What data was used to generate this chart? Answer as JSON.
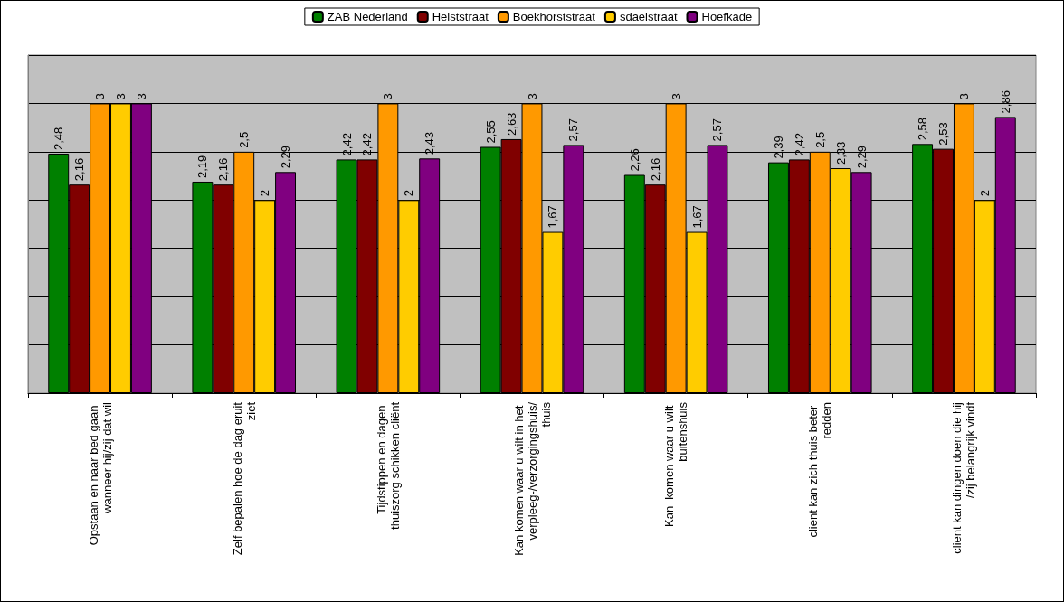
{
  "chart_data": {
    "type": "bar",
    "categories": [
      "Opstaan en naar bed gaan wanneer hij/zij dat wil",
      "Zelf bepalen hoe de dag eruit ziet",
      "Tijdstippen en dagen thuiszorg schikken cliënt",
      "Kan komen waar u wilt in het verpleeg-/verzorgingshuis/thuis",
      "Kan  komen waar u wilt buitenshuis",
      "client kan zich thuis beter redden",
      "client kan dingen doen die hij/zij belangrijk vindt"
    ],
    "series": [
      {
        "name": "ZAB Nederland",
        "color": "#008000",
        "values": [
          2.48,
          2.19,
          2.42,
          2.55,
          2.26,
          2.39,
          2.58
        ],
        "value_labels": [
          "2,48",
          "2,19",
          "2,42",
          "2,55",
          "2,26",
          "2,39",
          "2,58"
        ]
      },
      {
        "name": "Helststraat",
        "color": "#800000",
        "values": [
          2.16,
          2.16,
          2.42,
          2.63,
          2.16,
          2.42,
          2.53
        ],
        "value_labels": [
          "2,16",
          "2,16",
          "2,42",
          "2,63",
          "2,16",
          "2,42",
          "2,53"
        ]
      },
      {
        "name": "Boekhorststraat",
        "color": "#ff9900",
        "values": [
          3,
          2.5,
          3,
          3,
          3,
          2.5,
          3
        ],
        "value_labels": [
          "3",
          "2,5",
          "3",
          "3",
          "3",
          "2,5",
          "3"
        ]
      },
      {
        "name": "sdaelstraat",
        "color": "#ffcc00",
        "values": [
          3,
          2,
          2,
          1.67,
          1.67,
          2.33,
          2
        ],
        "value_labels": [
          "3",
          "2",
          "2",
          "1,67",
          "1,67",
          "2,33",
          "2"
        ]
      },
      {
        "name": "Hoefkade",
        "color": "#800080",
        "values": [
          3,
          2.29,
          2.43,
          2.57,
          2.57,
          2.29,
          2.86
        ],
        "value_labels": [
          "3",
          "2,29",
          "2,43",
          "2,57",
          "2,57",
          "2,29",
          "2,86"
        ]
      }
    ],
    "ylim": [
      0,
      3.5
    ],
    "yticks": [
      {
        "value": 0,
        "label": null
      },
      {
        "value": 0.5,
        "label": null
      },
      {
        "value": 1,
        "label": null
      },
      {
        "value": 1.5,
        "label": null
      },
      {
        "value": 2,
        "label": null
      },
      {
        "value": 2.5,
        "label": null
      },
      {
        "value": 3,
        "label": null
      },
      {
        "value": 3.5,
        "label": null
      }
    ],
    "grid": "y",
    "legend": "top",
    "tick_labels": "x"
  }
}
